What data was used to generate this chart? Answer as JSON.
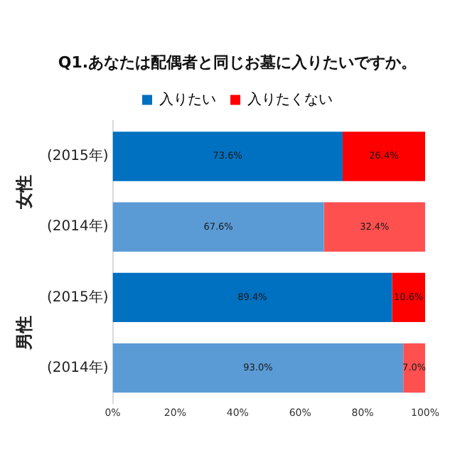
{
  "chart_data": {
    "type": "bar",
    "orientation": "horizontal",
    "stacked": true,
    "title": "Q1.あなたは配偶者と同じお墓に入りたいですか。",
    "categories": [
      "(2015年)",
      "(2014年)",
      "(2015年)",
      "(2014年)"
    ],
    "series": [
      {
        "name": "入りたい",
        "color": "#0070c0",
        "colors": [
          "#0070c0",
          "#5b9bd5",
          "#0070c0",
          "#5b9bd5"
        ],
        "values": [
          73.6,
          67.6,
          89.4,
          93.0
        ],
        "value_labels": [
          "73.6%",
          "67.6%",
          "89.4%",
          "93.0%"
        ]
      },
      {
        "name": "入りたくない",
        "color": "#ff0000",
        "colors": [
          "#ff0000",
          "#ff5050",
          "#ff0000",
          "#ff5050"
        ],
        "values": [
          26.4,
          32.4,
          10.6,
          7.0
        ],
        "value_labels": [
          "26.4%",
          "32.4%",
          "10.6%",
          "7.0%"
        ]
      }
    ],
    "annotations": [
      "女性",
      "男性"
    ],
    "xlim": [
      0,
      100
    ],
    "xticks": [
      {
        "value": 0,
        "label": "0%"
      },
      {
        "value": 20,
        "label": "20%"
      },
      {
        "value": 40,
        "label": "40%"
      },
      {
        "value": 60,
        "label": "60%"
      },
      {
        "value": 80,
        "label": "80%"
      },
      {
        "value": 100,
        "label": "100%"
      }
    ],
    "legend": "top",
    "grid": false
  }
}
